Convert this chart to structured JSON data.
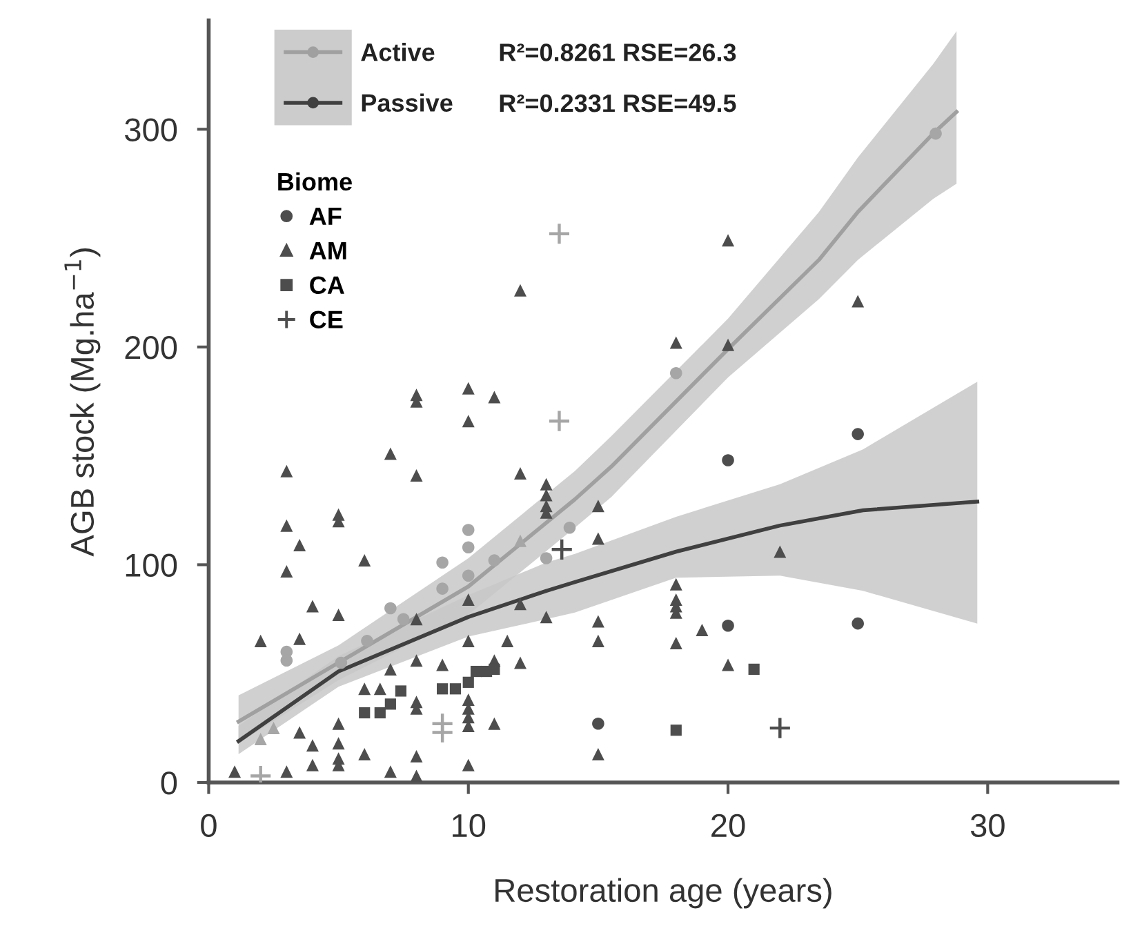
{
  "chart_data": {
    "type": "scatter",
    "xlabel": "Restoration age (years)",
    "ylabel": "AGB stock (Mg.ha$^{−1}$)",
    "legend_title": "Biome",
    "xlim": [
      0,
      35
    ],
    "ylim": [
      0,
      350
    ],
    "xticks": [
      0,
      10,
      20,
      30
    ],
    "yticks": [
      0,
      100,
      200,
      300
    ],
    "grid": false,
    "legend": "top left",
    "annotations": [
      "R²=0.8261 RSE=26.3",
      "R²=0.2331 RSE=49.5"
    ],
    "series": [
      {
        "type": "line",
        "name": "Active",
        "color": "#a0a0a0",
        "x": [
          1.15,
          5,
          10,
          14.1,
          15.5,
          20,
          23.5,
          25,
          27.9,
          28.8
        ],
        "values": [
          28,
          55,
          90,
          130,
          145,
          199,
          240,
          262,
          298,
          308
        ],
        "lower": [
          18,
          47,
          77,
          117,
          131,
          186,
          222,
          240,
          268,
          275
        ],
        "upper": [
          40,
          63,
          103,
          143,
          159,
          213,
          262,
          287,
          330,
          345
        ]
      },
      {
        "type": "line",
        "name": "Passive",
        "color": "#404040",
        "x": [
          1.15,
          5,
          10,
          13,
          14.1,
          18,
          22,
          25.2,
          29.6
        ],
        "values": [
          19,
          51,
          76,
          88,
          92,
          106,
          118,
          125,
          129
        ],
        "lower": [
          13,
          44,
          67,
          75,
          78,
          94,
          95,
          88,
          73
        ],
        "upper": [
          26,
          58,
          86,
          101,
          105,
          122,
          137,
          153,
          184
        ]
      },
      {
        "type": "scatter",
        "name": "AF",
        "marker": "circle",
        "color": "#4d4d4d",
        "x": [
          3,
          3,
          5.1,
          6.1,
          7,
          7.5,
          9,
          9,
          10,
          10,
          10,
          11,
          13,
          13.9,
          18,
          28,
          20,
          25,
          20,
          25,
          15
        ],
        "values": [
          60,
          56,
          55,
          65,
          80,
          75,
          101,
          89,
          116,
          108,
          95,
          102,
          103,
          117,
          188,
          298,
          148,
          160,
          72,
          73,
          27
        ],
        "colors": [
          "#a6a6a6",
          "#a6a6a6",
          "#a6a6a6",
          "#a6a6a6",
          "#a6a6a6",
          "#a6a6a6",
          "#a6a6a6",
          "#a6a6a6",
          "#a6a6a6",
          "#a6a6a6",
          "#a6a6a6",
          "#a6a6a6",
          "#a6a6a6",
          "#a6a6a6",
          "#a6a6a6",
          "#a6a6a6",
          "#4d4d4d",
          "#4d4d4d",
          "#4d4d4d",
          "#4d4d4d",
          "#4d4d4d"
        ]
      },
      {
        "type": "scatter",
        "name": "AM",
        "marker": "triangle",
        "color": "#4d4d4d",
        "x": [
          12,
          8,
          8,
          10,
          11,
          10,
          7,
          20,
          25,
          18,
          20,
          15,
          15,
          22,
          18,
          18,
          18,
          18,
          18,
          19,
          20,
          15,
          15,
          15,
          3,
          5,
          5,
          3,
          3.5,
          3,
          6,
          4,
          5,
          2,
          3.5,
          1,
          3,
          7,
          5,
          5,
          5,
          5,
          6,
          4,
          4,
          3.5,
          6,
          6.6,
          7,
          8,
          12,
          13,
          13,
          13,
          13,
          10,
          12,
          13,
          10,
          11.5,
          12,
          9,
          8,
          11,
          8,
          8,
          10,
          10,
          10,
          10,
          11,
          8,
          10,
          8,
          8,
          12,
          2,
          2.5
        ],
        "values": [
          226,
          178,
          175,
          181,
          177,
          166,
          151,
          249,
          221,
          202,
          201,
          127,
          112,
          106,
          91,
          84,
          81,
          78,
          64,
          70,
          54,
          74,
          65,
          13,
          143,
          123,
          120,
          118,
          109,
          97,
          102,
          81,
          77,
          65,
          66,
          5,
          5,
          5,
          27,
          18,
          11,
          8,
          13,
          17,
          8,
          23,
          43,
          43,
          52,
          141,
          142,
          137,
          132,
          127,
          124,
          84,
          82,
          76,
          65,
          65,
          55,
          54,
          56,
          56,
          37,
          34,
          38,
          34,
          30,
          26,
          27,
          12,
          8,
          3,
          75,
          111,
          20,
          25
        ],
        "colors": [
          "#4d4d4d",
          "#4d4d4d",
          "#4d4d4d",
          "#4d4d4d",
          "#4d4d4d",
          "#4d4d4d",
          "#4d4d4d",
          "#4d4d4d",
          "#4d4d4d",
          "#4d4d4d",
          "#4d4d4d",
          "#4d4d4d",
          "#4d4d4d",
          "#4d4d4d",
          "#4d4d4d",
          "#4d4d4d",
          "#4d4d4d",
          "#4d4d4d",
          "#4d4d4d",
          "#4d4d4d",
          "#4d4d4d",
          "#4d4d4d",
          "#4d4d4d",
          "#4d4d4d",
          "#4d4d4d",
          "#4d4d4d",
          "#4d4d4d",
          "#4d4d4d",
          "#4d4d4d",
          "#4d4d4d",
          "#4d4d4d",
          "#4d4d4d",
          "#4d4d4d",
          "#4d4d4d",
          "#4d4d4d",
          "#4d4d4d",
          "#4d4d4d",
          "#4d4d4d",
          "#4d4d4d",
          "#4d4d4d",
          "#4d4d4d",
          "#4d4d4d",
          "#4d4d4d",
          "#4d4d4d",
          "#4d4d4d",
          "#4d4d4d",
          "#4d4d4d",
          "#4d4d4d",
          "#4d4d4d",
          "#4d4d4d",
          "#4d4d4d",
          "#4d4d4d",
          "#4d4d4d",
          "#4d4d4d",
          "#4d4d4d",
          "#4d4d4d",
          "#4d4d4d",
          "#4d4d4d",
          "#4d4d4d",
          "#4d4d4d",
          "#4d4d4d",
          "#4d4d4d",
          "#4d4d4d",
          "#4d4d4d",
          "#4d4d4d",
          "#4d4d4d",
          "#4d4d4d",
          "#4d4d4d",
          "#4d4d4d",
          "#4d4d4d",
          "#4d4d4d",
          "#4d4d4d",
          "#4d4d4d",
          "#4d4d4d",
          "#4d4d4d",
          "#a6a6a6",
          "#a6a6a6",
          "#a6a6a6"
        ]
      },
      {
        "type": "scatter",
        "name": "CA",
        "marker": "square",
        "color": "#4d4d4d",
        "x": [
          6,
          6.6,
          7,
          7.4,
          9,
          9.5,
          10,
          10.3,
          10.7,
          11,
          21,
          18
        ],
        "values": [
          32,
          32,
          36,
          42,
          43,
          43,
          46,
          51,
          51,
          52,
          52,
          24
        ],
        "colors": [
          "#4d4d4d",
          "#4d4d4d",
          "#4d4d4d",
          "#4d4d4d",
          "#4d4d4d",
          "#4d4d4d",
          "#4d4d4d",
          "#4d4d4d",
          "#4d4d4d",
          "#4d4d4d",
          "#4d4d4d",
          "#4d4d4d"
        ]
      },
      {
        "type": "scatter",
        "name": "CE",
        "marker": "cross",
        "color": "#4d4d4d",
        "x": [
          13.5,
          13.5,
          9,
          9,
          2,
          13.6,
          22
        ],
        "values": [
          252,
          166,
          27,
          23,
          3,
          107,
          25
        ],
        "colors": [
          "#a6a6a6",
          "#a6a6a6",
          "#a6a6a6",
          "#a6a6a6",
          "#a6a6a6",
          "#4d4d4d",
          "#4d4d4d"
        ]
      }
    ]
  }
}
